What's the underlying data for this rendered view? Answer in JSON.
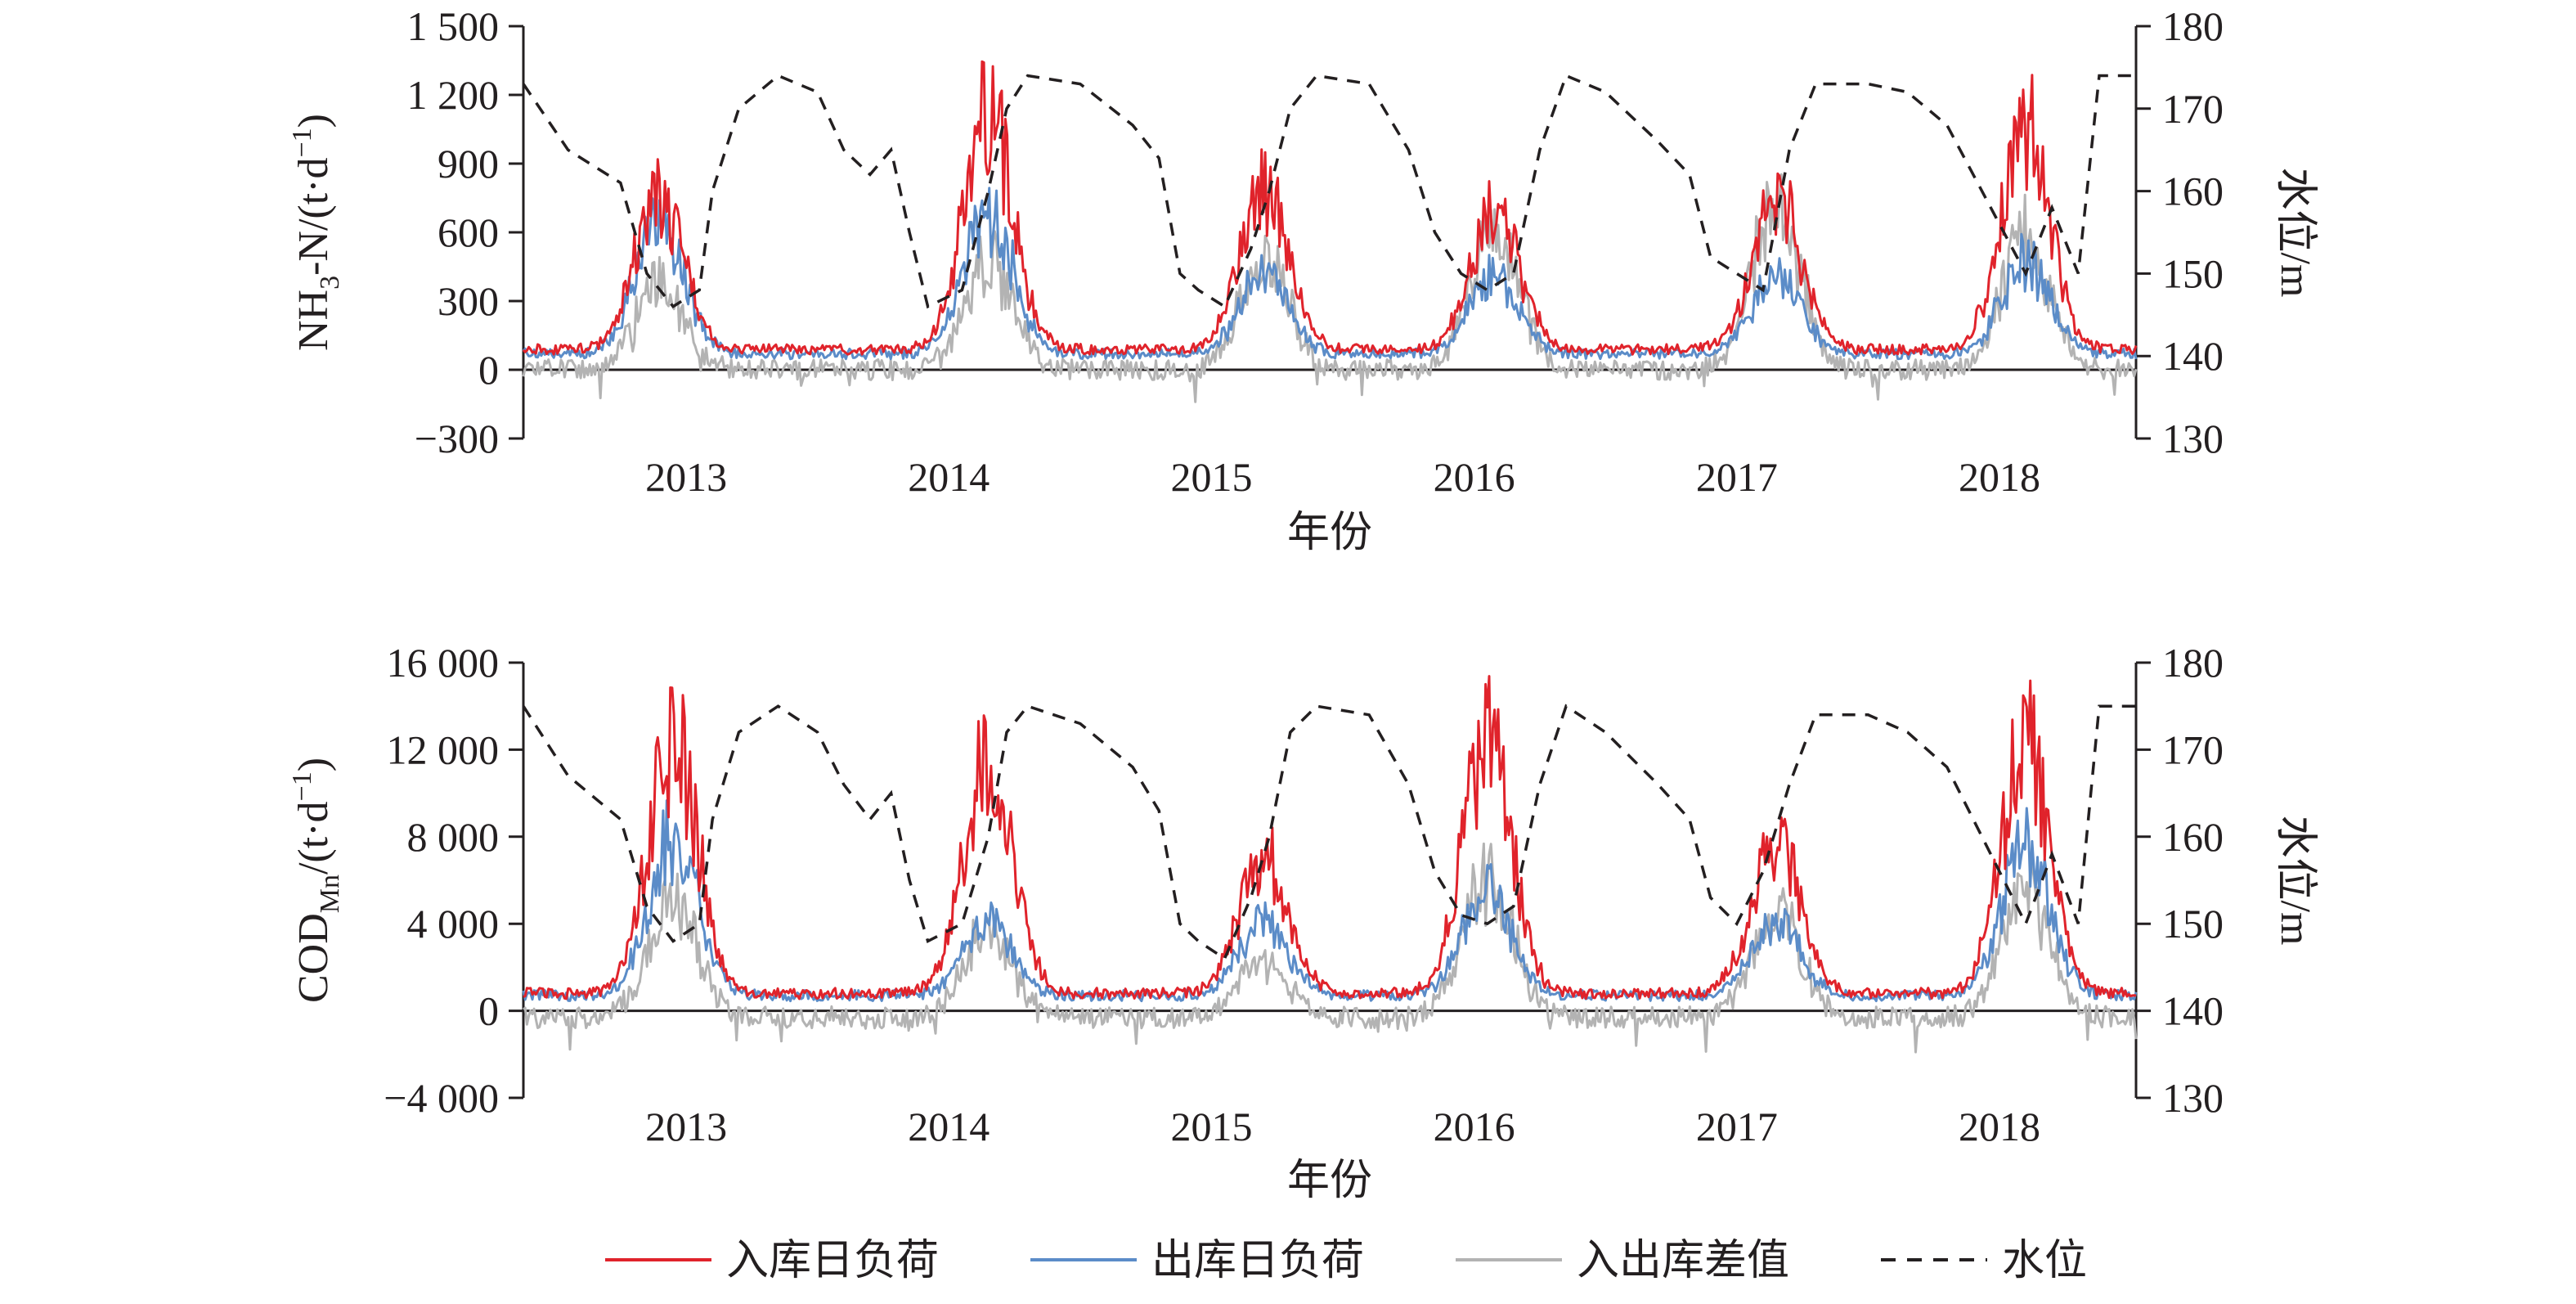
{
  "legend": [
    {
      "label": "入库日负荷",
      "color": "#e0232b",
      "dash": false
    },
    {
      "label": "出库日负荷",
      "color": "#5b8cc8",
      "dash": false
    },
    {
      "label": "入出库差值",
      "color": "#b3b3b3",
      "dash": false
    },
    {
      "label": "水位",
      "color": "#231f20",
      "dash": true
    }
  ],
  "chart_data": [
    {
      "type": "line",
      "panel": "top",
      "xlabel": "年份",
      "ylabel_main": "NH",
      "ylabel_sub": "3",
      "ylabel_rest": "-N/(t·d",
      "ylabel_sup": "−1",
      "ylabel_close": ")",
      "y2label": "水位/m",
      "x_ticks": [
        "2013",
        "2014",
        "2015",
        "2016",
        "2017",
        "2018"
      ],
      "xlim": [
        2012.38,
        2018.52
      ],
      "ylim": [
        -300,
        1500
      ],
      "y_ticks": [
        -300,
        0,
        300,
        600,
        900,
        1200,
        1500
      ],
      "y_tick_labels": [
        "−300",
        "0",
        "300",
        "600",
        "900",
        "1 200",
        "1 500"
      ],
      "y2lim": [
        130,
        180
      ],
      "y2_ticks": [
        "130",
        "140",
        "150",
        "160",
        "170",
        "180"
      ],
      "series": [
        {
          "name": "入库日负荷",
          "peaks": [
            {
              "t": 2012.9,
              "v": 930
            },
            {
              "t": 2014.15,
              "v": 1410
            },
            {
              "t": 2015.2,
              "v": 980
            },
            {
              "t": 2016.08,
              "v": 850
            },
            {
              "t": 2017.15,
              "v": 950
            },
            {
              "t": 2018.1,
              "v": 1320
            }
          ],
          "base": 80
        },
        {
          "name": "出库日负荷",
          "peaks": [
            {
              "t": 2012.9,
              "v": 800
            },
            {
              "t": 2014.15,
              "v": 850
            },
            {
              "t": 2015.2,
              "v": 520
            },
            {
              "t": 2016.08,
              "v": 500
            },
            {
              "t": 2017.15,
              "v": 500
            },
            {
              "t": 2018.1,
              "v": 580
            }
          ],
          "base": 60
        },
        {
          "name": "入出库差值",
          "peaks": [
            {
              "t": 2012.9,
              "v": 480
            },
            {
              "t": 2014.15,
              "v": 600
            },
            {
              "t": 2015.2,
              "v": 620
            },
            {
              "t": 2016.08,
              "v": 820
            },
            {
              "t": 2017.15,
              "v": 900
            },
            {
              "t": 2018.1,
              "v": 750
            }
          ],
          "base": 0
        },
        {
          "name": "水位",
          "points": [
            [
              2012.38,
              173
            ],
            [
              2012.55,
              165
            ],
            [
              2012.75,
              161
            ],
            [
              2012.85,
              150
            ],
            [
              2012.95,
              146
            ],
            [
              2013.05,
              148
            ],
            [
              2013.1,
              160
            ],
            [
              2013.2,
              170
            ],
            [
              2013.35,
              174
            ],
            [
              2013.5,
              172
            ],
            [
              2013.6,
              165
            ],
            [
              2013.7,
              162
            ],
            [
              2013.78,
              165
            ],
            [
              2013.85,
              155
            ],
            [
              2013.92,
              146
            ],
            [
              2014.05,
              148
            ],
            [
              2014.15,
              160
            ],
            [
              2014.22,
              170
            ],
            [
              2014.3,
              174
            ],
            [
              2014.5,
              173
            ],
            [
              2014.7,
              168
            ],
            [
              2014.8,
              164
            ],
            [
              2014.88,
              150
            ],
            [
              2014.95,
              148
            ],
            [
              2015.05,
              146
            ],
            [
              2015.15,
              153
            ],
            [
              2015.22,
              160
            ],
            [
              2015.3,
              170
            ],
            [
              2015.4,
              174
            ],
            [
              2015.6,
              173
            ],
            [
              2015.75,
              165
            ],
            [
              2015.85,
              155
            ],
            [
              2015.95,
              150
            ],
            [
              2016.05,
              148
            ],
            [
              2016.15,
              150
            ],
            [
              2016.25,
              165
            ],
            [
              2016.35,
              174
            ],
            [
              2016.5,
              172
            ],
            [
              2016.7,
              166
            ],
            [
              2016.82,
              162
            ],
            [
              2016.9,
              152
            ],
            [
              2017.0,
              150
            ],
            [
              2017.1,
              148
            ],
            [
              2017.2,
              165
            ],
            [
              2017.3,
              173
            ],
            [
              2017.5,
              173
            ],
            [
              2017.65,
              172
            ],
            [
              2017.8,
              168
            ],
            [
              2017.9,
              162
            ],
            [
              2018.0,
              156
            ],
            [
              2018.1,
              150
            ],
            [
              2018.2,
              158
            ],
            [
              2018.3,
              150
            ],
            [
              2018.38,
              174
            ],
            [
              2018.52,
              174
            ]
          ]
        }
      ]
    },
    {
      "type": "line",
      "panel": "bottom",
      "xlabel": "年份",
      "ylabel_main": "COD",
      "ylabel_sub": "Mn",
      "ylabel_rest": "/(t·d",
      "ylabel_sup": "−1",
      "ylabel_close": ")",
      "y2label": "水位/m",
      "x_ticks": [
        "2013",
        "2014",
        "2015",
        "2016",
        "2017",
        "2018"
      ],
      "xlim": [
        2012.38,
        2018.52
      ],
      "ylim": [
        -4000,
        16000
      ],
      "y_ticks": [
        -4000,
        0,
        4000,
        8000,
        12000,
        16000
      ],
      "y_tick_labels": [
        "−4 000",
        "0",
        "4 000",
        "8 000",
        "12 000",
        "16 000"
      ],
      "y2lim": [
        130,
        180
      ],
      "y2_ticks": [
        "130",
        "140",
        "150",
        "160",
        "170",
        "180"
      ],
      "series": [
        {
          "name": "入库日负荷",
          "peaks": [
            {
              "t": 2012.95,
              "v": 15600
            },
            {
              "t": 2014.15,
              "v": 14600
            },
            {
              "t": 2015.2,
              "v": 8700
            },
            {
              "t": 2016.05,
              "v": 15600
            },
            {
              "t": 2017.15,
              "v": 10000
            },
            {
              "t": 2018.1,
              "v": 15300
            }
          ],
          "base": 700
        },
        {
          "name": "出库日负荷",
          "peaks": [
            {
              "t": 2012.95,
              "v": 10000
            },
            {
              "t": 2014.15,
              "v": 5000
            },
            {
              "t": 2015.2,
              "v": 5000
            },
            {
              "t": 2016.05,
              "v": 7000
            },
            {
              "t": 2017.15,
              "v": 5000
            },
            {
              "t": 2018.1,
              "v": 9500
            }
          ],
          "base": 600
        },
        {
          "name": "入出库差值",
          "peaks": [
            {
              "t": 2012.95,
              "v": 7000
            },
            {
              "t": 2014.15,
              "v": 5000
            },
            {
              "t": 2015.2,
              "v": 3000
            },
            {
              "t": 2016.05,
              "v": 8500
            },
            {
              "t": 2017.15,
              "v": 6000
            },
            {
              "t": 2018.1,
              "v": 7000
            }
          ],
          "base": -300
        },
        {
          "name": "水位",
          "points": [
            [
              2012.38,
              175
            ],
            [
              2012.55,
              167
            ],
            [
              2012.75,
              162
            ],
            [
              2012.85,
              152
            ],
            [
              2012.95,
              148
            ],
            [
              2013.05,
              150
            ],
            [
              2013.1,
              162
            ],
            [
              2013.2,
              172
            ],
            [
              2013.35,
              175
            ],
            [
              2013.5,
              172
            ],
            [
              2013.6,
              166
            ],
            [
              2013.7,
              162
            ],
            [
              2013.78,
              165
            ],
            [
              2013.85,
              155
            ],
            [
              2013.92,
              148
            ],
            [
              2014.05,
              150
            ],
            [
              2014.15,
              160
            ],
            [
              2014.22,
              172
            ],
            [
              2014.3,
              175
            ],
            [
              2014.5,
              173
            ],
            [
              2014.7,
              168
            ],
            [
              2014.8,
              163
            ],
            [
              2014.88,
              150
            ],
            [
              2014.95,
              148
            ],
            [
              2015.05,
              146
            ],
            [
              2015.15,
              153
            ],
            [
              2015.22,
              160
            ],
            [
              2015.3,
              172
            ],
            [
              2015.4,
              175
            ],
            [
              2015.6,
              174
            ],
            [
              2015.75,
              166
            ],
            [
              2015.85,
              156
            ],
            [
              2015.95,
              151
            ],
            [
              2016.05,
              150
            ],
            [
              2016.15,
              152
            ],
            [
              2016.25,
              166
            ],
            [
              2016.35,
              175
            ],
            [
              2016.5,
              172
            ],
            [
              2016.7,
              166
            ],
            [
              2016.82,
              162
            ],
            [
              2016.9,
              153
            ],
            [
              2017.0,
              150
            ],
            [
              2017.1,
              156
            ],
            [
              2017.2,
              166
            ],
            [
              2017.3,
              174
            ],
            [
              2017.5,
              174
            ],
            [
              2017.65,
              172
            ],
            [
              2017.8,
              168
            ],
            [
              2017.9,
              162
            ],
            [
              2018.0,
              156
            ],
            [
              2018.1,
              150
            ],
            [
              2018.2,
              158
            ],
            [
              2018.3,
              150
            ],
            [
              2018.38,
              175
            ],
            [
              2018.52,
              175
            ]
          ]
        }
      ]
    }
  ]
}
